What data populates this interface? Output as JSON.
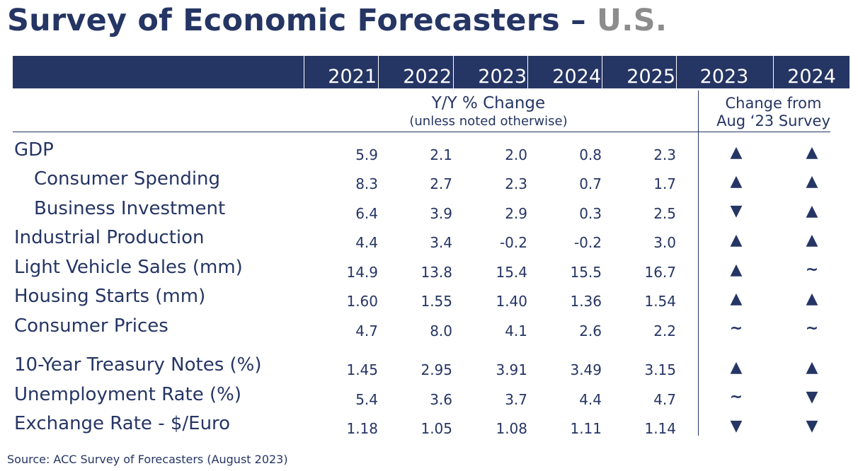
{
  "title": {
    "main": "Survey of Economic Forecasters –",
    "region": "U.S."
  },
  "columns": {
    "years": [
      "2021",
      "2022",
      "2023",
      "2024",
      "2025"
    ],
    "change_years": [
      "2023",
      "2024"
    ]
  },
  "subheader": {
    "yoy_line1": "Y/Y % Change",
    "yoy_line2": "(unless noted otherwise)",
    "change_line1": "Change from",
    "change_line2": "Aug ‘23 Survey"
  },
  "rows": [
    {
      "label": "GDP",
      "values": [
        "5.9",
        "2.1",
        "2.0",
        "0.8",
        "2.3"
      ],
      "change": [
        "▲",
        "▲"
      ]
    },
    {
      "label": "Consumer Spending",
      "values": [
        "8.3",
        "2.7",
        "2.3",
        "0.7",
        "1.7"
      ],
      "change": [
        "▲",
        "▲"
      ]
    },
    {
      "label": "Business Investment",
      "values": [
        "6.4",
        "3.9",
        "2.9",
        "0.3",
        "2.5"
      ],
      "change": [
        "▼",
        "▲"
      ]
    },
    {
      "label": "Industrial Production",
      "values": [
        "4.4",
        "3.4",
        "-0.2",
        "-0.2",
        "3.0"
      ],
      "change": [
        "▲",
        "▲"
      ]
    },
    {
      "label": "Light Vehicle Sales (mm)",
      "values": [
        "14.9",
        "13.8",
        "15.4",
        "15.5",
        "16.7"
      ],
      "change": [
        "▲",
        "~"
      ]
    },
    {
      "label": "Housing Starts (mm)",
      "values": [
        "1.60",
        "1.55",
        "1.40",
        "1.36",
        "1.54"
      ],
      "change": [
        "▲",
        "▲"
      ]
    },
    {
      "label": "Consumer Prices",
      "values": [
        "4.7",
        "8.0",
        "4.1",
        "2.6",
        "2.2"
      ],
      "change": [
        "~",
        "~"
      ]
    },
    {
      "label": "10-Year Treasury Notes (%)",
      "values": [
        "1.45",
        "2.95",
        "3.91",
        "3.49",
        "3.15"
      ],
      "change": [
        "▲",
        "▲"
      ]
    },
    {
      "label": "Unemployment Rate (%)",
      "values": [
        "5.4",
        "3.6",
        "3.7",
        "4.4",
        "4.7"
      ],
      "change": [
        "~",
        "▼"
      ]
    },
    {
      "label": "Exchange Rate - $/Euro",
      "values": [
        "1.18",
        "1.05",
        "1.08",
        "1.11",
        "1.14"
      ],
      "change": [
        "▼",
        "▼"
      ]
    }
  ],
  "source": "Source:  ACC Survey  of Forecasters (August 2023)",
  "colors": {
    "navy": "#253564",
    "gray": "#8c8c8c"
  }
}
